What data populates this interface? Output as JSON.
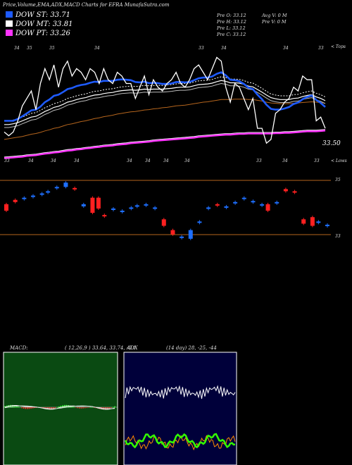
{
  "header": {
    "title": "Price,Volume,EMA,ADX,MACD Charts for EFRA MunafaSutra.com"
  },
  "legend": [
    {
      "label": "DOW ST:",
      "value": "33.71",
      "color": "#1e5bff"
    },
    {
      "label": "DOW MT:",
      "value": "33.81",
      "color": "#ffffff"
    },
    {
      "label": "DOW PT:",
      "value": "33.26",
      "color": "#ff33ff"
    }
  ],
  "info": {
    "prev_open": "Pre O: 33.12",
    "prev_high": "Pre H: 33.12",
    "prev_low": "Pre L: 33.12",
    "prev_close": "Pre C: 33.12",
    "avg_vol": "Avg V: 0 M",
    "prev_vol": "Pre V: 0 M"
  },
  "price_label": "33.50",
  "top_right_label": "< Tops",
  "low_right_label": "< Lows",
  "top_tick_labels": [
    "34",
    "35",
    "35",
    "34",
    "33",
    "34",
    "34",
    "33"
  ],
  "low_tick_labels": [
    "33",
    "34",
    "34",
    "34",
    "34",
    "34",
    "34",
    "34",
    "33",
    "34",
    "33"
  ],
  "volume_axis": {
    "top": "35",
    "bottom": "33"
  },
  "macd_panel": {
    "label": "MACD:",
    "params": "( 12,26,9 ) 33.64, 33.74, -0.1"
  },
  "adx_panel": {
    "label": "ADX",
    "params": "(14 day) 28, -25, -44"
  },
  "chart_data": [
    {
      "type": "line",
      "name": "price",
      "close": [
        33.2,
        33.1,
        33.2,
        33.5,
        33.9,
        34.1,
        34.3,
        33.8,
        34.5,
        34.9,
        34.6,
        35.0,
        34.4,
        34.9,
        35.1,
        34.7,
        34.9,
        34.8,
        34.6,
        34.9,
        34.8,
        34.5,
        34.9,
        34.6,
        34.5,
        34.8,
        34.7,
        34.5,
        34.5,
        34.1,
        34.4,
        34.7,
        34.2,
        34.6,
        34.4,
        34.3,
        34.5,
        34.6,
        34.8,
        34.5,
        34.4,
        34.6,
        34.9,
        35.0,
        34.8,
        34.6,
        34.9,
        35.2,
        35.1,
        34.4,
        34.0,
        34.5,
        34.4,
        34.1,
        33.8,
        34.1,
        33.3,
        33.3,
        32.9,
        33.0,
        33.7,
        33.8,
        34.0,
        34.1,
        34.4,
        34.3,
        34.7,
        34.6,
        34.6,
        33.5,
        33.6,
        33.3
      ],
      "ema_st": [
        33.5,
        33.5,
        33.5,
        33.55,
        33.62,
        33.7,
        33.78,
        33.8,
        33.88,
        34.0,
        34.07,
        34.17,
        34.2,
        34.27,
        34.35,
        34.38,
        34.43,
        34.46,
        34.48,
        34.52,
        34.55,
        34.54,
        34.57,
        34.57,
        34.57,
        34.6,
        34.61,
        34.6,
        34.59,
        34.54,
        34.53,
        34.55,
        34.51,
        34.52,
        34.51,
        34.49,
        34.49,
        34.5,
        34.54,
        34.54,
        34.53,
        34.54,
        34.59,
        34.64,
        34.66,
        34.66,
        34.69,
        34.76,
        34.8,
        34.72,
        34.6,
        34.59,
        34.56,
        34.49,
        34.39,
        34.35,
        34.2,
        34.08,
        33.93,
        33.82,
        33.8,
        33.8,
        33.83,
        33.87,
        33.95,
        33.99,
        34.08,
        34.14,
        34.18,
        34.06,
        33.98,
        33.87
      ],
      "ema_mt": [
        33.4,
        33.4,
        33.42,
        33.45,
        33.5,
        33.55,
        33.6,
        33.62,
        33.68,
        33.75,
        33.8,
        33.86,
        33.89,
        33.94,
        34.0,
        34.03,
        34.07,
        34.1,
        34.12,
        34.16,
        34.19,
        34.2,
        34.23,
        34.25,
        34.26,
        34.29,
        34.31,
        34.32,
        34.33,
        34.32,
        34.33,
        34.35,
        34.34,
        34.35,
        34.35,
        34.35,
        34.36,
        34.37,
        34.39,
        34.4,
        34.4,
        34.41,
        34.44,
        34.47,
        34.48,
        34.49,
        34.51,
        34.55,
        34.58,
        34.56,
        34.52,
        34.52,
        34.51,
        34.48,
        34.43,
        34.41,
        34.34,
        34.27,
        34.19,
        34.12,
        34.09,
        34.07,
        34.07,
        34.07,
        34.1,
        34.11,
        34.15,
        34.18,
        34.2,
        34.14,
        34.1,
        34.04
      ],
      "ema_lt": [
        33.0,
        33.02,
        33.04,
        33.06,
        33.08,
        33.11,
        33.14,
        33.16,
        33.19,
        33.23,
        33.26,
        33.3,
        33.32,
        33.36,
        33.4,
        33.42,
        33.45,
        33.48,
        33.5,
        33.53,
        33.56,
        33.58,
        33.61,
        33.63,
        33.65,
        33.68,
        33.7,
        33.72,
        33.74,
        33.75,
        33.77,
        33.79,
        33.8,
        33.82,
        33.83,
        33.85,
        33.86,
        33.88,
        33.9,
        33.91,
        33.92,
        33.94,
        33.96,
        33.98,
        34.0,
        34.01,
        34.03,
        34.05,
        34.07,
        34.07,
        34.07,
        34.08,
        34.08,
        34.08,
        34.07,
        34.07,
        34.05,
        34.03,
        34.0,
        33.98,
        33.97,
        33.96,
        33.96,
        33.96,
        33.97,
        33.98,
        33.99,
        34.0,
        34.01,
        34.0,
        33.99,
        33.97
      ],
      "ema_pt": [
        32.5,
        32.51,
        32.52,
        32.53,
        32.54,
        32.56,
        32.57,
        32.58,
        32.6,
        32.62,
        32.63,
        32.65,
        32.66,
        32.68,
        32.7,
        32.71,
        32.73,
        32.74,
        32.76,
        32.77,
        32.79,
        32.8,
        32.82,
        32.83,
        32.84,
        32.86,
        32.87,
        32.88,
        32.9,
        32.91,
        32.92,
        32.93,
        32.94,
        32.96,
        32.97,
        32.98,
        32.99,
        33.0,
        33.01,
        33.02,
        33.03,
        33.04,
        33.05,
        33.07,
        33.08,
        33.09,
        33.1,
        33.11,
        33.12,
        33.13,
        33.13,
        33.14,
        33.15,
        33.15,
        33.16,
        33.16,
        33.16,
        33.16,
        33.16,
        33.16,
        33.17,
        33.17,
        33.18,
        33.18,
        33.19,
        33.2,
        33.21,
        33.22,
        33.22,
        33.22,
        33.23,
        33.24
      ],
      "ylim": [
        32.3,
        35.7
      ]
    },
    {
      "type": "bar",
      "name": "volume-candles",
      "candles": [
        {
          "x": 0,
          "o": 34.0,
          "c": 33.7,
          "up": false
        },
        {
          "x": 3,
          "o": 34.2,
          "c": 34.1,
          "up": false
        },
        {
          "x": 6,
          "o": 34.3,
          "c": 34.25,
          "up": true
        },
        {
          "x": 9,
          "o": 34.4,
          "c": 34.35,
          "up": true
        },
        {
          "x": 12,
          "o": 34.5,
          "c": 34.45,
          "up": true
        },
        {
          "x": 14,
          "o": 34.6,
          "c": 34.55,
          "up": true
        },
        {
          "x": 17,
          "o": 34.8,
          "c": 34.75,
          "up": true
        },
        {
          "x": 20,
          "o": 35.0,
          "c": 34.8,
          "up": true
        },
        {
          "x": 23,
          "o": 34.75,
          "c": 34.7,
          "up": false
        },
        {
          "x": 26,
          "o": 34.0,
          "c": 33.9,
          "up": true
        },
        {
          "x": 29,
          "o": 34.3,
          "c": 33.6,
          "up": false
        },
        {
          "x": 31,
          "o": 34.3,
          "c": 33.8,
          "up": false
        },
        {
          "x": 33,
          "o": 33.5,
          "c": 33.45,
          "up": false
        },
        {
          "x": 36,
          "o": 33.8,
          "c": 33.75,
          "up": true
        },
        {
          "x": 39,
          "o": 33.7,
          "c": 33.65,
          "up": true
        },
        {
          "x": 42,
          "o": 33.85,
          "c": 33.8,
          "up": true
        },
        {
          "x": 44,
          "o": 33.95,
          "c": 33.9,
          "up": true
        },
        {
          "x": 47,
          "o": 34.0,
          "c": 33.95,
          "up": true
        },
        {
          "x": 50,
          "o": 33.85,
          "c": 33.8,
          "up": true
        },
        {
          "x": 53,
          "o": 33.3,
          "c": 33.0,
          "up": false
        },
        {
          "x": 56,
          "o": 32.8,
          "c": 32.6,
          "up": false
        },
        {
          "x": 59,
          "o": 32.5,
          "c": 32.45,
          "up": true
        },
        {
          "x": 62,
          "o": 32.8,
          "c": 32.4,
          "up": true
        },
        {
          "x": 65,
          "o": 33.2,
          "c": 33.15,
          "up": true
        },
        {
          "x": 68,
          "o": 33.85,
          "c": 33.8,
          "up": true
        },
        {
          "x": 71,
          "o": 34.0,
          "c": 33.95,
          "up": false
        },
        {
          "x": 74,
          "o": 33.9,
          "c": 33.85,
          "up": true
        },
        {
          "x": 77,
          "o": 34.1,
          "c": 34.05,
          "up": true
        },
        {
          "x": 80,
          "o": 34.3,
          "c": 34.25,
          "up": true
        },
        {
          "x": 83,
          "o": 34.15,
          "c": 34.1,
          "up": true
        },
        {
          "x": 86,
          "o": 34.0,
          "c": 33.95,
          "up": true
        },
        {
          "x": 88,
          "o": 34.0,
          "c": 33.7,
          "up": false
        },
        {
          "x": 91,
          "o": 34.1,
          "c": 34.05,
          "up": true
        },
        {
          "x": 94,
          "o": 34.7,
          "c": 34.6,
          "up": false
        },
        {
          "x": 97,
          "o": 34.6,
          "c": 34.55,
          "up": false
        },
        {
          "x": 100,
          "o": 33.3,
          "c": 33.1,
          "up": false
        },
        {
          "x": 103,
          "o": 33.4,
          "c": 33.0,
          "up": false
        },
        {
          "x": 105,
          "o": 33.2,
          "c": 33.15,
          "up": true
        },
        {
          "x": 108,
          "o": 33.05,
          "c": 33.0,
          "up": true
        }
      ],
      "ylim": [
        32.2,
        35.3
      ]
    }
  ]
}
